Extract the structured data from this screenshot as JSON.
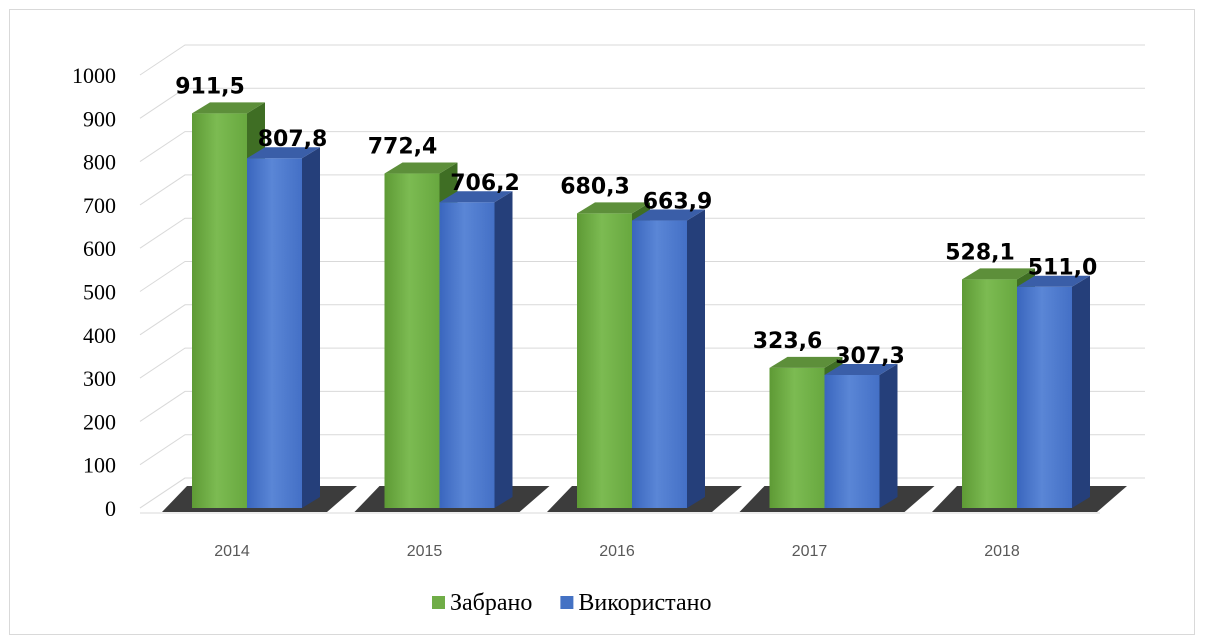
{
  "chart_data": {
    "type": "bar",
    "title": "",
    "xlabel": "",
    "ylabel": "",
    "categories": [
      "2014",
      "2015",
      "2016",
      "2017",
      "2018"
    ],
    "series": [
      {
        "name": "Забрано",
        "values": [
          911.5,
          772.4,
          680.3,
          323.6,
          528.1
        ],
        "labels": [
          "911,5",
          "772,4",
          "680,3",
          "323,6",
          "528,1"
        ],
        "color": "#70ad47"
      },
      {
        "name": "Використано",
        "values": [
          807.8,
          706.2,
          663.9,
          307.3,
          511.0
        ],
        "labels": [
          "807,8",
          "706,2",
          "663,9",
          "307,3",
          "511,0"
        ],
        "color": "#4472c4"
      }
    ],
    "ylim": [
      0,
      1000
    ],
    "yticks": [
      "0",
      "100",
      "200",
      "300",
      "400",
      "500",
      "600",
      "700",
      "800",
      "900",
      "1000"
    ],
    "grid": true,
    "legend": "bottom"
  }
}
